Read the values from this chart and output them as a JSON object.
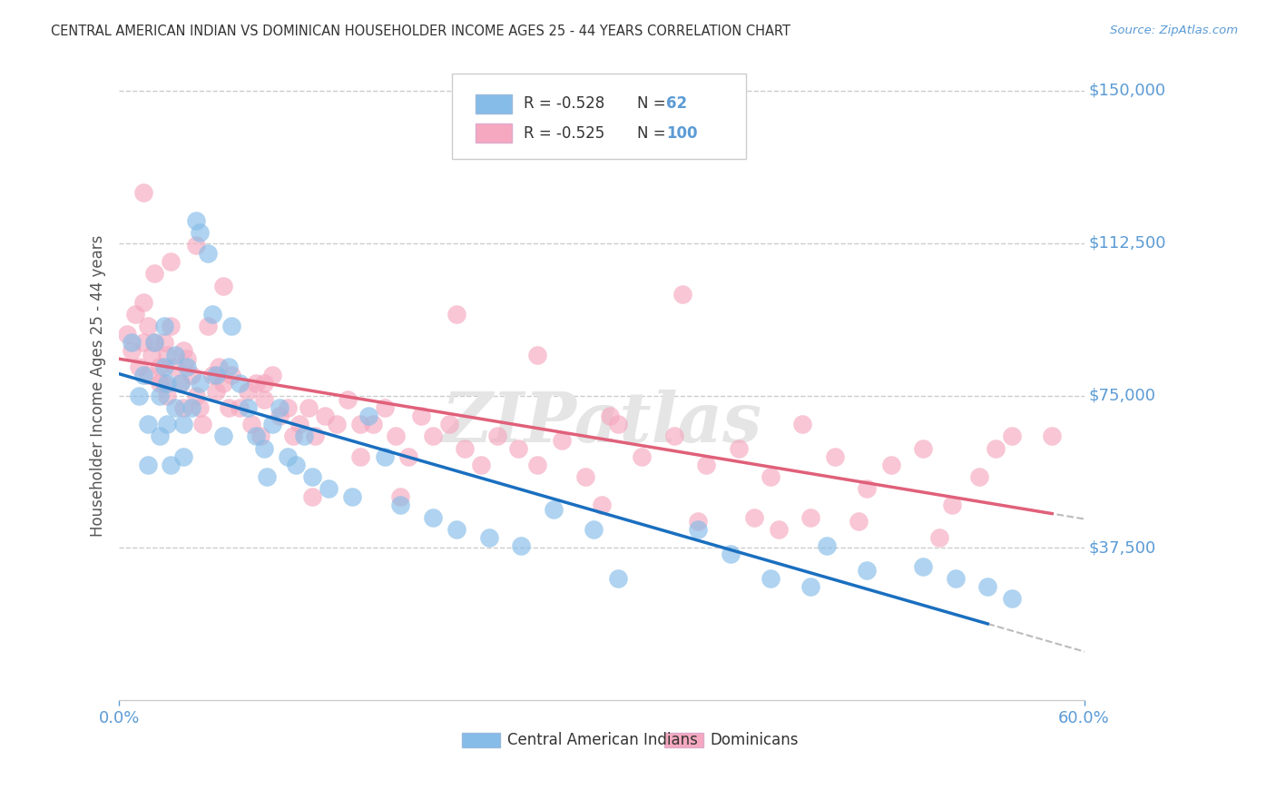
{
  "title": "CENTRAL AMERICAN INDIAN VS DOMINICAN HOUSEHOLDER INCOME AGES 25 - 44 YEARS CORRELATION CHART",
  "source": "Source: ZipAtlas.com",
  "ylabel": "Householder Income Ages 25 - 44 years",
  "ytick_positions": [
    37500,
    75000,
    112500,
    150000
  ],
  "ytick_labels": [
    "$37,500",
    "$75,000",
    "$112,500",
    "$150,000"
  ],
  "xmin": 0.0,
  "xmax": 0.6,
  "ymin": 0,
  "ymax": 155000,
  "legend_r1": "R = -0.528",
  "legend_n1": "62",
  "legend_r2": "R = -0.525",
  "legend_n2": "100",
  "legend_label1": "Central American Indians",
  "legend_label2": "Dominicans",
  "blue_color": "#85bce8",
  "pink_color": "#f5a8bf",
  "blue_line_color": "#1a6fbf",
  "pink_line_color": "#e0607a",
  "dash_color": "#bbbbbb",
  "watermark": "ZIPatlas",
  "watermark_color": "#e5e5e5",
  "grid_color": "#cccccc",
  "title_color": "#333333",
  "label_color": "#5b9bd5",
  "text_color": "#555555",
  "blue_scatter_x": [
    0.008,
    0.012,
    0.015,
    0.018,
    0.018,
    0.022,
    0.025,
    0.025,
    0.028,
    0.028,
    0.03,
    0.03,
    0.032,
    0.035,
    0.035,
    0.038,
    0.04,
    0.04,
    0.042,
    0.045,
    0.048,
    0.05,
    0.05,
    0.055,
    0.058,
    0.06,
    0.065,
    0.068,
    0.07,
    0.075,
    0.08,
    0.085,
    0.09,
    0.092,
    0.095,
    0.1,
    0.105,
    0.11,
    0.115,
    0.12,
    0.13,
    0.145,
    0.155,
    0.165,
    0.175,
    0.195,
    0.21,
    0.23,
    0.25,
    0.27,
    0.295,
    0.31,
    0.36,
    0.38,
    0.405,
    0.43,
    0.44,
    0.465,
    0.5,
    0.52,
    0.54,
    0.555
  ],
  "blue_scatter_y": [
    88000,
    75000,
    80000,
    68000,
    58000,
    88000,
    75000,
    65000,
    92000,
    82000,
    78000,
    68000,
    58000,
    85000,
    72000,
    78000,
    68000,
    60000,
    82000,
    72000,
    118000,
    115000,
    78000,
    110000,
    95000,
    80000,
    65000,
    82000,
    92000,
    78000,
    72000,
    65000,
    62000,
    55000,
    68000,
    72000,
    60000,
    58000,
    65000,
    55000,
    52000,
    50000,
    70000,
    60000,
    48000,
    45000,
    42000,
    40000,
    38000,
    47000,
    42000,
    30000,
    42000,
    36000,
    30000,
    28000,
    38000,
    32000,
    33000,
    30000,
    28000,
    25000
  ],
  "pink_scatter_x": [
    0.005,
    0.008,
    0.01,
    0.012,
    0.015,
    0.015,
    0.018,
    0.018,
    0.02,
    0.022,
    0.025,
    0.025,
    0.028,
    0.028,
    0.03,
    0.03,
    0.032,
    0.035,
    0.038,
    0.04,
    0.04,
    0.042,
    0.045,
    0.048,
    0.05,
    0.052,
    0.055,
    0.058,
    0.06,
    0.062,
    0.065,
    0.068,
    0.07,
    0.075,
    0.08,
    0.082,
    0.085,
    0.088,
    0.09,
    0.095,
    0.1,
    0.105,
    0.108,
    0.112,
    0.118,
    0.122,
    0.128,
    0.135,
    0.142,
    0.15,
    0.158,
    0.165,
    0.172,
    0.18,
    0.188,
    0.195,
    0.205,
    0.215,
    0.225,
    0.235,
    0.248,
    0.26,
    0.275,
    0.29,
    0.305,
    0.325,
    0.345,
    0.365,
    0.385,
    0.405,
    0.425,
    0.445,
    0.465,
    0.48,
    0.5,
    0.518,
    0.535,
    0.555,
    0.015,
    0.022,
    0.032,
    0.048,
    0.065,
    0.09,
    0.12,
    0.15,
    0.175,
    0.21,
    0.26,
    0.3,
    0.35,
    0.395,
    0.43,
    0.31,
    0.36,
    0.41,
    0.46,
    0.51,
    0.545,
    0.58
  ],
  "pink_scatter_y": [
    90000,
    86000,
    95000,
    82000,
    98000,
    88000,
    80000,
    92000,
    85000,
    88000,
    82000,
    78000,
    88000,
    78000,
    85000,
    75000,
    92000,
    82000,
    78000,
    86000,
    72000,
    84000,
    80000,
    75000,
    72000,
    68000,
    92000,
    80000,
    76000,
    82000,
    78000,
    72000,
    80000,
    72000,
    76000,
    68000,
    78000,
    65000,
    74000,
    80000,
    70000,
    72000,
    65000,
    68000,
    72000,
    65000,
    70000,
    68000,
    74000,
    60000,
    68000,
    72000,
    65000,
    60000,
    70000,
    65000,
    68000,
    62000,
    58000,
    65000,
    62000,
    58000,
    64000,
    55000,
    70000,
    60000,
    65000,
    58000,
    62000,
    55000,
    68000,
    60000,
    52000,
    58000,
    62000,
    48000,
    55000,
    65000,
    125000,
    105000,
    108000,
    112000,
    102000,
    78000,
    50000,
    68000,
    50000,
    95000,
    85000,
    48000,
    100000,
    45000,
    45000,
    68000,
    44000,
    42000,
    44000,
    40000,
    62000,
    65000
  ]
}
